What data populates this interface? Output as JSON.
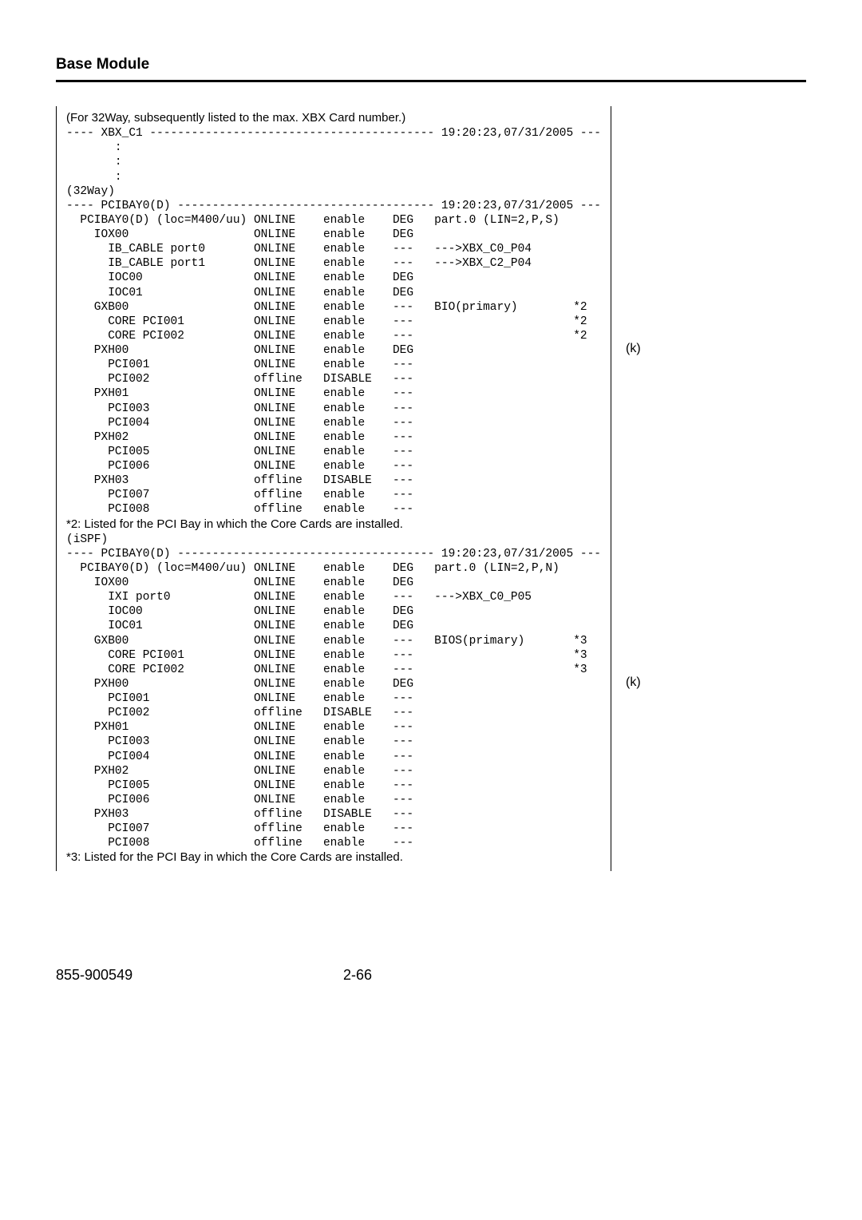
{
  "header": {
    "title": "Base Module"
  },
  "footer": {
    "left": "855-900549",
    "center": "2-66"
  },
  "sideLabels": {
    "k1": "(k)",
    "k2": "(k)"
  },
  "intro": {
    "note32way": "(For 32Way, subsequently listed to the max. XBX Card number.)",
    "xbxHeader": "---- XBX_C1 ----------------------------------------- 19:20:23,07/31/2005 ---",
    "colon": "       :",
    "way32": "(32Way)",
    "pciHeader1": "---- PCIBAY0(D) ------------------------------------- 19:20:23,07/31/2005 ---",
    "note2": "*2: Listed for the PCI Bay in which the Core Cards are installed.",
    "ispf": "(iSPF)",
    "pciHeader2": "---- PCIBAY0(D) ------------------------------------- 19:20:23,07/31/2005 ---",
    "note3": "*3: Listed for the PCI Bay in which the Core Cards are installed."
  },
  "cols": {
    "c1": 27,
    "c2": 10,
    "c3": 10,
    "c4": 6
  },
  "block1": [
    {
      "n": "  PCIBAY0(D) (loc=M400/uu)",
      "s": "ONLINE",
      "e": "enable",
      "d": "DEG",
      "x": "part.0 (LIN=2,P,S)",
      "m": ""
    },
    {
      "n": "    IOX00",
      "s": "ONLINE",
      "e": "enable",
      "d": "DEG",
      "x": "",
      "m": ""
    },
    {
      "n": "      IB_CABLE port0",
      "s": "ONLINE",
      "e": "enable",
      "d": "---",
      "x": "--->XBX_C0_P04",
      "m": ""
    },
    {
      "n": "      IB_CABLE port1",
      "s": "ONLINE",
      "e": "enable",
      "d": "---",
      "x": "--->XBX_C2_P04",
      "m": ""
    },
    {
      "n": "      IOC00",
      "s": "ONLINE",
      "e": "enable",
      "d": "DEG",
      "x": "",
      "m": ""
    },
    {
      "n": "      IOC01",
      "s": "ONLINE",
      "e": "enable",
      "d": "DEG",
      "x": "",
      "m": ""
    },
    {
      "n": "    GXB00",
      "s": "ONLINE",
      "e": "enable",
      "d": "---",
      "x": "BIO(primary)",
      "m": "*2"
    },
    {
      "n": "      CORE PCI001",
      "s": "ONLINE",
      "e": "enable",
      "d": "---",
      "x": "",
      "m": "*2"
    },
    {
      "n": "      CORE PCI002",
      "s": "ONLINE",
      "e": "enable",
      "d": "---",
      "x": "",
      "m": "*2"
    },
    {
      "n": "    PXH00",
      "s": "ONLINE",
      "e": "enable",
      "d": "DEG",
      "x": "",
      "m": ""
    },
    {
      "n": "      PCI001",
      "s": "ONLINE",
      "e": "enable",
      "d": "---",
      "x": "",
      "m": ""
    },
    {
      "n": "      PCI002",
      "s": "offline",
      "e": "DISABLE",
      "d": "---",
      "x": "",
      "m": ""
    },
    {
      "n": "    PXH01",
      "s": "ONLINE",
      "e": "enable",
      "d": "---",
      "x": "",
      "m": ""
    },
    {
      "n": "      PCI003",
      "s": "ONLINE",
      "e": "enable",
      "d": "---",
      "x": "",
      "m": ""
    },
    {
      "n": "      PCI004",
      "s": "ONLINE",
      "e": "enable",
      "d": "---",
      "x": "",
      "m": ""
    },
    {
      "n": "    PXH02",
      "s": "ONLINE",
      "e": "enable",
      "d": "---",
      "x": "",
      "m": ""
    },
    {
      "n": "      PCI005",
      "s": "ONLINE",
      "e": "enable",
      "d": "---",
      "x": "",
      "m": ""
    },
    {
      "n": "      PCI006",
      "s": "ONLINE",
      "e": "enable",
      "d": "---",
      "x": "",
      "m": ""
    },
    {
      "n": "    PXH03",
      "s": "offline",
      "e": "DISABLE",
      "d": "---",
      "x": "",
      "m": ""
    },
    {
      "n": "      PCI007",
      "s": "offline",
      "e": "enable",
      "d": "---",
      "x": "",
      "m": ""
    },
    {
      "n": "      PCI008",
      "s": "offline",
      "e": "enable",
      "d": "---",
      "x": "",
      "m": ""
    }
  ],
  "block2": [
    {
      "n": "  PCIBAY0(D) (loc=M400/uu)",
      "s": "ONLINE",
      "e": "enable",
      "d": "DEG",
      "x": "part.0 (LIN=2,P,N)",
      "m": ""
    },
    {
      "n": "    IOX00",
      "s": "ONLINE",
      "e": "enable",
      "d": "DEG",
      "x": "",
      "m": ""
    },
    {
      "n": "      IXI port0",
      "s": "ONLINE",
      "e": "enable",
      "d": "---",
      "x": "--->XBX_C0_P05",
      "m": ""
    },
    {
      "n": "      IOC00",
      "s": "ONLINE",
      "e": "enable",
      "d": "DEG",
      "x": "",
      "m": ""
    },
    {
      "n": "      IOC01",
      "s": "ONLINE",
      "e": "enable",
      "d": "DEG",
      "x": "",
      "m": ""
    },
    {
      "n": "    GXB00",
      "s": "ONLINE",
      "e": "enable",
      "d": "---",
      "x": "BIOS(primary)",
      "m": "*3"
    },
    {
      "n": "      CORE PCI001",
      "s": "ONLINE",
      "e": "enable",
      "d": "---",
      "x": "",
      "m": "*3"
    },
    {
      "n": "      CORE PCI002",
      "s": "ONLINE",
      "e": "enable",
      "d": "---",
      "x": "",
      "m": "*3"
    },
    {
      "n": "    PXH00",
      "s": "ONLINE",
      "e": "enable",
      "d": "DEG",
      "x": "",
      "m": ""
    },
    {
      "n": "      PCI001",
      "s": "ONLINE",
      "e": "enable",
      "d": "---",
      "x": "",
      "m": ""
    },
    {
      "n": "      PCI002",
      "s": "offline",
      "e": "DISABLE",
      "d": "---",
      "x": "",
      "m": ""
    },
    {
      "n": "    PXH01",
      "s": "ONLINE",
      "e": "enable",
      "d": "---",
      "x": "",
      "m": ""
    },
    {
      "n": "      PCI003",
      "s": "ONLINE",
      "e": "enable",
      "d": "---",
      "x": "",
      "m": ""
    },
    {
      "n": "      PCI004",
      "s": "ONLINE",
      "e": "enable",
      "d": "---",
      "x": "",
      "m": ""
    },
    {
      "n": "    PXH02",
      "s": "ONLINE",
      "e": "enable",
      "d": "---",
      "x": "",
      "m": ""
    },
    {
      "n": "      PCI005",
      "s": "ONLINE",
      "e": "enable",
      "d": "---",
      "x": "",
      "m": ""
    },
    {
      "n": "      PCI006",
      "s": "ONLINE",
      "e": "enable",
      "d": "---",
      "x": "",
      "m": ""
    },
    {
      "n": "    PXH03",
      "s": "offline",
      "e": "DISABLE",
      "d": "---",
      "x": "",
      "m": ""
    },
    {
      "n": "      PCI007",
      "s": "offline",
      "e": "enable",
      "d": "---",
      "x": "",
      "m": ""
    },
    {
      "n": "      PCI008",
      "s": "offline",
      "e": "enable",
      "d": "---",
      "x": "",
      "m": ""
    }
  ]
}
